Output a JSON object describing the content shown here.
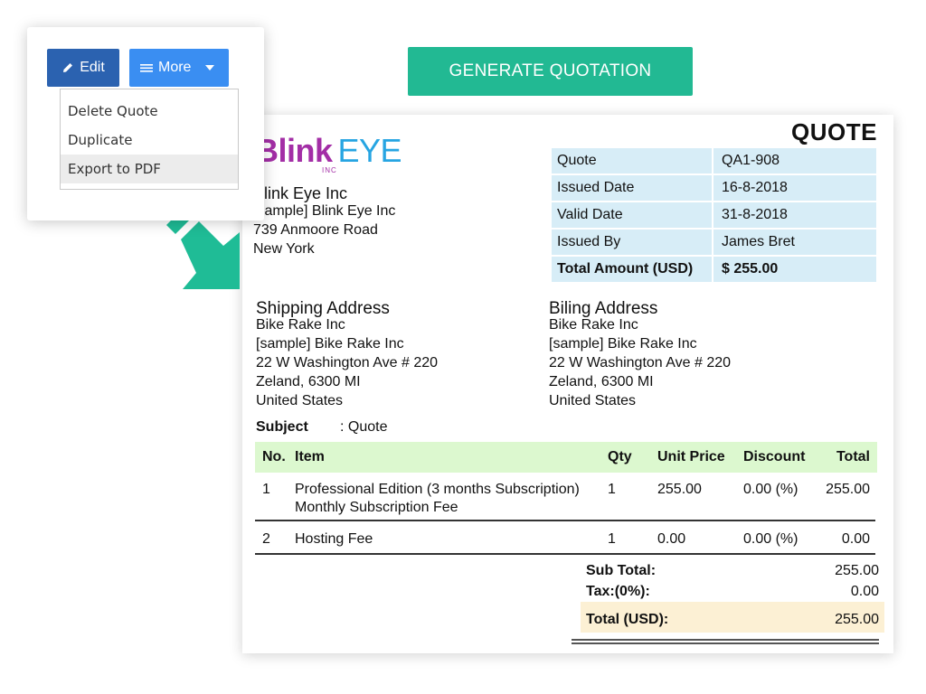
{
  "generate_button": "GENERATE QUOTATION",
  "toolbar": {
    "edit_label": "Edit",
    "more_label": "More",
    "menu": [
      "Delete Quote",
      "Duplicate",
      "Export to PDF"
    ]
  },
  "quote": {
    "title": "QUOTE",
    "logo": {
      "blink": "Blink",
      "eye": "EYE",
      "inc": "INC"
    },
    "company": {
      "name": "Blink Eye Inc",
      "lines": [
        "[sample] Blink Eye Inc",
        "739  Anmoore Road",
        "New York"
      ]
    },
    "meta": [
      {
        "key": "Quote",
        "value": "QA1-908"
      },
      {
        "key": "Issued Date",
        "value": "16-8-2018"
      },
      {
        "key": "Valid Date",
        "value": "31-8-2018"
      },
      {
        "key": "Issued By",
        "value": "James Bret"
      },
      {
        "key": "Total Amount (USD)",
        "value": "$ 255.00"
      }
    ],
    "shipping": {
      "title": "Shipping Address",
      "lines": [
        "Bike Rake Inc",
        "[sample] Bike Rake Inc",
        "22 W Washington Ave # 220",
        "Zeland, 6300 MI",
        "United States"
      ]
    },
    "billing": {
      "title": "Biling Address",
      "lines": [
        "Bike Rake Inc",
        "[sample] Bike Rake Inc",
        "22 W Washington Ave # 220",
        "Zeland, 6300 MI",
        "United States"
      ]
    },
    "subject_label": "Subject",
    "subject_value": ": Quote",
    "headers": [
      "No.",
      "Item",
      "Qty",
      "Unit Price",
      "Discount",
      "Total"
    ],
    "items": [
      {
        "no": "1",
        "item": "Professional Edition (3 months Subscription)",
        "item2": "Monthly Subscription Fee",
        "qty": "1",
        "unit": "255.00",
        "disc": "0.00  (%)",
        "total": "255.00"
      },
      {
        "no": "2",
        "item": "Hosting Fee",
        "qty": "1",
        "unit": "0.00",
        "disc": "0.00  (%)",
        "total": "0.00"
      }
    ],
    "summary": {
      "subtotal_label": "Sub Total:",
      "subtotal": "255.00",
      "tax_label": "Tax:(0%):",
      "tax": "0.00",
      "total_label": "Total (USD):",
      "total": "255.00"
    }
  },
  "colors": {
    "generate_bg": "#22b993",
    "arrow": "#1fbc96",
    "edit_bg": "#2b62b0",
    "more_bg": "#3a8ef2",
    "meta_bg": "#d7edf7",
    "table_head_bg": "#dcf8cf",
    "total_bg": "#fcf0d4",
    "logo_blink": "#a32ea6",
    "logo_eye": "#27a5e2"
  }
}
